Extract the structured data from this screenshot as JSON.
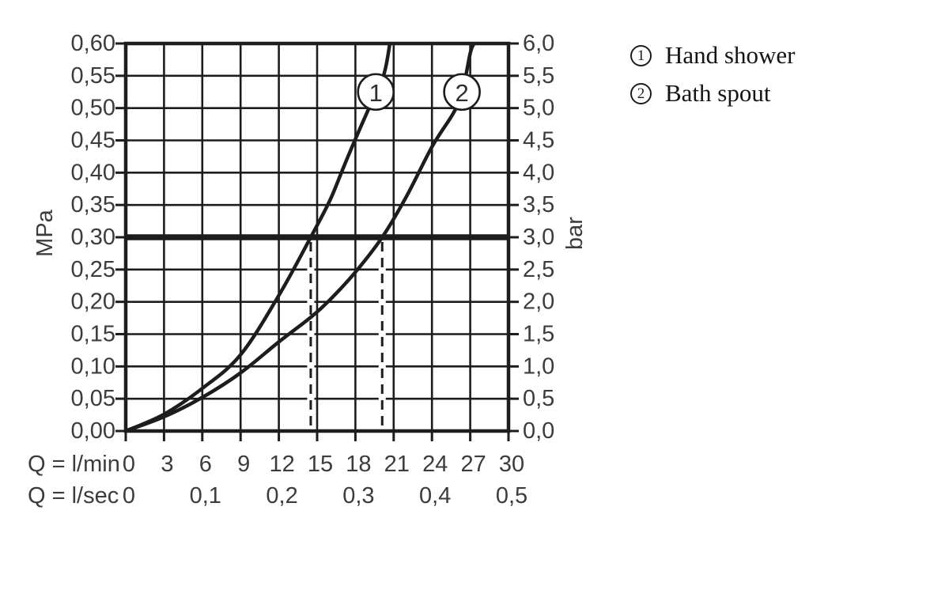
{
  "chart_data": {
    "type": "line",
    "description": "Flow rate vs pressure diagram with two curves",
    "x_axis": {
      "row1_label": "Q = l/min",
      "row2_label": "Q = l/sec",
      "ticks_lmin": [
        "0",
        "3",
        "6",
        "9",
        "12",
        "15",
        "18",
        "21",
        "24",
        "27",
        "30"
      ],
      "ticks_lsec": [
        "0",
        "0,1",
        "0,2",
        "0,3",
        "0,4",
        "0,5"
      ],
      "range_lmin": [
        0,
        30
      ]
    },
    "y_axis_left": {
      "unit": "MPa",
      "ticks": [
        "0,60",
        "0,55",
        "0,50",
        "0,45",
        "0,40",
        "0,35",
        "0,30",
        "0,25",
        "0,20",
        "0,15",
        "0,10",
        "0,05",
        "0,00"
      ],
      "range_mpa": [
        0,
        0.6
      ]
    },
    "y_axis_right": {
      "unit": "bar",
      "ticks": [
        "6,0",
        "5,5",
        "5,0",
        "4,5",
        "4,0",
        "3,5",
        "3,0",
        "2,5",
        "2,0",
        "1,5",
        "1,0",
        "0,5",
        "0,0"
      ],
      "range_bar": [
        0,
        6.0
      ]
    },
    "reference_line": {
      "value_mpa": 0.3,
      "value_bar": 3.0
    },
    "guide_lines_lmin": [
      14.5,
      20.1
    ],
    "grid": {
      "x_step_lmin": 3,
      "y_step_mpa": 0.05
    },
    "series": [
      {
        "id": "1",
        "name": "Hand shower",
        "marker": {
          "q_lmin": 19.6,
          "p_mpa": 0.525
        },
        "points_q_p": [
          [
            0,
            0
          ],
          [
            3,
            0.026
          ],
          [
            6,
            0.066
          ],
          [
            9,
            0.118
          ],
          [
            12,
            0.21
          ],
          [
            14.5,
            0.3
          ],
          [
            16,
            0.357
          ],
          [
            17,
            0.405
          ],
          [
            18,
            0.452
          ],
          [
            19,
            0.497
          ],
          [
            20.2,
            0.55
          ],
          [
            20.7,
            0.6
          ]
        ]
      },
      {
        "id": "2",
        "name": "Bath spout",
        "marker": {
          "q_lmin": 26.35,
          "p_mpa": 0.525
        },
        "points_q_p": [
          [
            0,
            0
          ],
          [
            3,
            0.022
          ],
          [
            6,
            0.052
          ],
          [
            9,
            0.09
          ],
          [
            12,
            0.138
          ],
          [
            14.5,
            0.176
          ],
          [
            16,
            0.203
          ],
          [
            18,
            0.246
          ],
          [
            20.1,
            0.3
          ],
          [
            22,
            0.363
          ],
          [
            24,
            0.44
          ],
          [
            25.7,
            0.493
          ],
          [
            26.4,
            0.527
          ],
          [
            27.0,
            0.585
          ],
          [
            27.3,
            0.6
          ]
        ]
      }
    ]
  },
  "legend": {
    "items": [
      {
        "symbol": "1",
        "label": "Hand shower"
      },
      {
        "symbol": "2",
        "label": "Bath spout"
      }
    ]
  },
  "colors": {
    "line": "#1d1d1d",
    "text": "#3c3c3c",
    "legend_text": "#141414",
    "background": "#ffffff"
  }
}
